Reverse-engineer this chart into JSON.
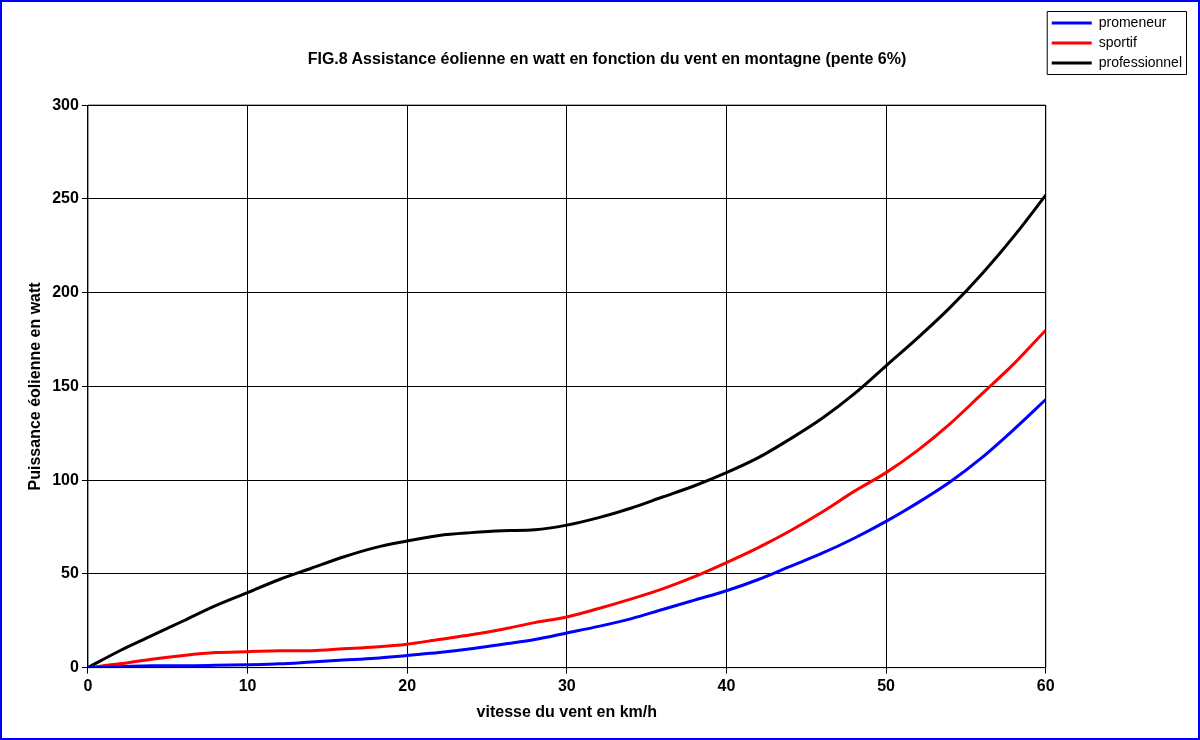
{
  "chart_data": {
    "type": "line",
    "title": "FIG.8 Assistance éolienne en watt en fonction du vent en montagne (pente 6%)",
    "xlabel": "vitesse du vent en km/h",
    "ylabel": "Puissance éolienne en watt",
    "x": [
      0,
      2,
      4,
      6,
      8,
      10,
      12,
      14,
      16,
      18,
      20,
      22,
      24,
      26,
      28,
      30,
      32,
      34,
      36,
      38,
      40,
      42,
      44,
      46,
      48,
      50,
      52,
      54,
      56,
      58,
      60
    ],
    "series": [
      {
        "name": "promeneur",
        "color": "#0000ff",
        "values": [
          0,
          0.5,
          1,
          1,
          1.2,
          1.5,
          2,
          3,
          4,
          5,
          6.5,
          8,
          10,
          12.5,
          15,
          18.5,
          22,
          26,
          31,
          36,
          41,
          47,
          54,
          61,
          69,
          78,
          88,
          99,
          112,
          127,
          143
        ]
      },
      {
        "name": "sportif",
        "color": "#ff0000",
        "values": [
          0,
          2,
          4.5,
          6.5,
          8,
          8.5,
          9,
          9,
          10,
          11,
          12.5,
          15,
          17.5,
          20.5,
          24,
          27,
          31.5,
          36.5,
          42,
          48.5,
          56,
          64,
          73,
          83,
          94,
          104,
          116,
          130,
          146,
          162,
          180
        ]
      },
      {
        "name": "professionnel",
        "color": "#000000",
        "values": [
          0,
          9,
          17,
          25,
          33,
          40,
          47,
          53,
          59,
          64,
          67.5,
          70.5,
          72,
          73,
          73.5,
          76,
          80,
          85,
          91,
          97,
          104,
          112,
          122,
          133,
          146,
          161,
          176,
          192,
          210,
          230,
          252
        ]
      }
    ],
    "xlim": [
      0,
      60
    ],
    "xticks": [
      0,
      10,
      20,
      30,
      40,
      50,
      60
    ],
    "ylim": [
      0,
      300
    ],
    "yticks": [
      0,
      50,
      100,
      150,
      200,
      250,
      300
    ],
    "grid": true,
    "legend": "top right",
    "marker": "none",
    "line_style": "solid"
  }
}
